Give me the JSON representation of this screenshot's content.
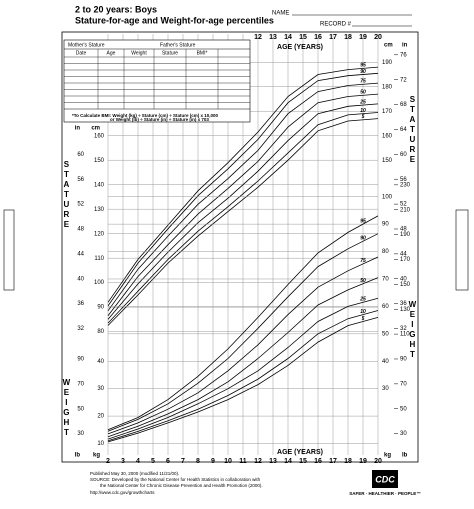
{
  "header": {
    "title": "2 to 20 years: Boys",
    "subtitle": "Stature-for-age and Weight-for-age percentiles",
    "name_label": "NAME",
    "record_label": "RECORD #"
  },
  "form": {
    "mothers_stature": "Mother's Stature",
    "fathers_stature": "Father's Stature",
    "columns": [
      "Date",
      "Age",
      "Weight",
      "Stature",
      "BMI*"
    ],
    "bmi_note": "*To Calculate BMI: Weight (kg) ÷ Stature (cm) ÷ Stature (cm) x 10,000",
    "bmi_note2": "or Weight (lb) ÷ Stature (in) ÷ Stature (in) x 703"
  },
  "footer": {
    "published": "Published May 30, 2000 (modified 11/21/00).",
    "source": "SOURCE: Developed by the National Center for Health Statistics in collaboration with",
    "source2": "the National Center for Chronic Disease Prevention and Health Promotion (2000).",
    "url": "http://www.cdc.gov/growthcharts",
    "logo": "CDC",
    "tagline": "SAFER · HEALTHIER · PEOPLE™"
  },
  "chart_data": [
    {
      "type": "line",
      "title": "STATURE",
      "x_label": "AGE (YEARS)",
      "y_label": "cm",
      "y2_label": "in",
      "x": [
        2,
        4,
        6,
        8,
        10,
        12,
        14,
        16,
        18,
        20
      ],
      "xlim": [
        2,
        20
      ],
      "xticks": [
        2,
        3,
        4,
        5,
        6,
        7,
        8,
        9,
        10,
        11,
        12,
        13,
        14,
        15,
        16,
        17,
        18,
        19,
        20
      ],
      "ylim": [
        77,
        195
      ],
      "yticks": [
        80,
        90,
        100,
        110,
        120,
        130,
        140,
        150,
        160,
        170,
        180,
        190
      ],
      "y2lim": [
        30.315,
        76.772
      ],
      "y2ticks": [
        32,
        36,
        40,
        44,
        48,
        52,
        56,
        60,
        64,
        68,
        72,
        76
      ],
      "color": "#000000",
      "grid": true,
      "series": [
        {
          "name": "95",
          "values": [
            92,
            109.5,
            123.5,
            137.5,
            149,
            161.5,
            176,
            185,
            187,
            188
          ]
        },
        {
          "name": "90",
          "values": [
            90.5,
            108,
            122,
            135.5,
            146.5,
            158.5,
            173.5,
            182.5,
            184.5,
            185.5
          ]
        },
        {
          "name": "75",
          "values": [
            88.5,
            105.5,
            119,
            132,
            142.5,
            154,
            169,
            178,
            180.5,
            181.5
          ]
        },
        {
          "name": "50",
          "values": [
            86.5,
            102.5,
            115.5,
            128,
            138.5,
            149.5,
            163.5,
            173.5,
            176,
            177
          ]
        },
        {
          "name": "25",
          "values": [
            85,
            99.5,
            112.5,
            124.5,
            134.5,
            145.5,
            158,
            169,
            172,
            173
          ]
        },
        {
          "name": "10",
          "values": [
            83.5,
            96.5,
            109.5,
            121,
            131,
            141.5,
            153,
            164.5,
            168.5,
            169.5
          ]
        },
        {
          "name": "5",
          "values": [
            82.5,
            95,
            108,
            119,
            129,
            139,
            150,
            162,
            166,
            167
          ]
        }
      ]
    },
    {
      "type": "line",
      "title": "WEIGHT",
      "x_label": "AGE (YEARS)",
      "y_label": "kg",
      "y2_label": "lb",
      "x": [
        2,
        4,
        6,
        8,
        10,
        12,
        14,
        16,
        18,
        20
      ],
      "xlim": [
        2,
        20
      ],
      "xticks": [
        2,
        3,
        4,
        5,
        6,
        7,
        8,
        9,
        10,
        11,
        12,
        13,
        14,
        15,
        16,
        17,
        18,
        19,
        20
      ],
      "ylim": [
        8,
        105
      ],
      "yticks": [
        10,
        20,
        30,
        40,
        50,
        60,
        70,
        80,
        90,
        100
      ],
      "y2lim": [
        17.637,
        231.485
      ],
      "y2ticks": [
        30,
        50,
        70,
        90,
        110,
        130,
        150,
        170,
        190,
        210,
        230
      ],
      "color": "#000000",
      "grid": true,
      "series": [
        {
          "name": "95",
          "values": [
            15,
            19.5,
            26,
            34.5,
            44.5,
            56,
            68,
            79.5,
            87,
            93
          ]
        },
        {
          "name": "90",
          "values": [
            14.5,
            18.8,
            24.5,
            32,
            41,
            52,
            63.5,
            74.5,
            81,
            86.5
          ]
        },
        {
          "name": "75",
          "values": [
            13.5,
            17.5,
            22.5,
            28.5,
            36.5,
            46,
            57,
            67,
            73,
            78
          ]
        },
        {
          "name": "50",
          "values": [
            12.5,
            16.3,
            20.8,
            26,
            32.5,
            41,
            50.5,
            60.5,
            66,
            70.5
          ]
        },
        {
          "name": "25",
          "values": [
            11.6,
            15.3,
            19.5,
            24.5,
            30,
            36.5,
            45,
            54.5,
            60,
            63
          ]
        },
        {
          "name": "10",
          "values": [
            11,
            14.4,
            18.3,
            22.5,
            27.5,
            33.5,
            41,
            50,
            55.5,
            58.5
          ]
        },
        {
          "name": "5",
          "values": [
            10.6,
            13.8,
            17.5,
            21.5,
            26,
            31.5,
            38.5,
            47,
            53,
            56
          ]
        }
      ]
    }
  ]
}
